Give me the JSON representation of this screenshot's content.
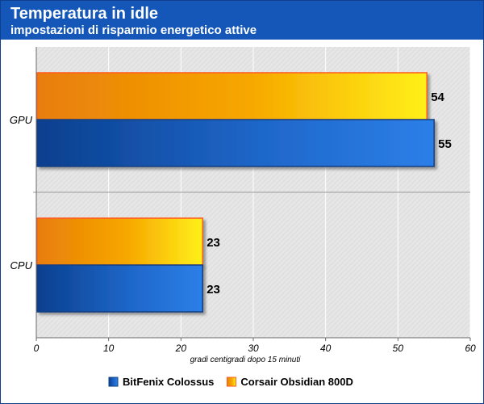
{
  "chart_data": {
    "type": "bar",
    "orientation": "horizontal",
    "title": "Temperatura in idle",
    "subtitle": "impostazioni di risparmio energetico attive",
    "categories": [
      "GPU",
      "CPU"
    ],
    "series": [
      {
        "name": "Corsair Obsidian 800D",
        "values": [
          54,
          23
        ],
        "color": "#f7a800",
        "color_dark": "#e87d0a",
        "color_light": "#fff01a",
        "edge": "#ff5a1e"
      },
      {
        "name": "BitFenix Colossus",
        "values": [
          55,
          23
        ],
        "color": "#1e66c8",
        "color_dark": "#0a3f8e",
        "color_light": "#2c7fe8",
        "edge": "#123f80"
      }
    ],
    "legend_order": [
      "BitFenix Colossus",
      "Corsair Obsidian 800D"
    ],
    "xlabel": "gradi centigradi dopo 15 minuti",
    "ylabel": "",
    "xlim": [
      0,
      60
    ],
    "xticks": [
      0,
      10,
      20,
      30,
      40,
      50,
      60
    ],
    "grid": true,
    "legend_position": "bottom"
  }
}
